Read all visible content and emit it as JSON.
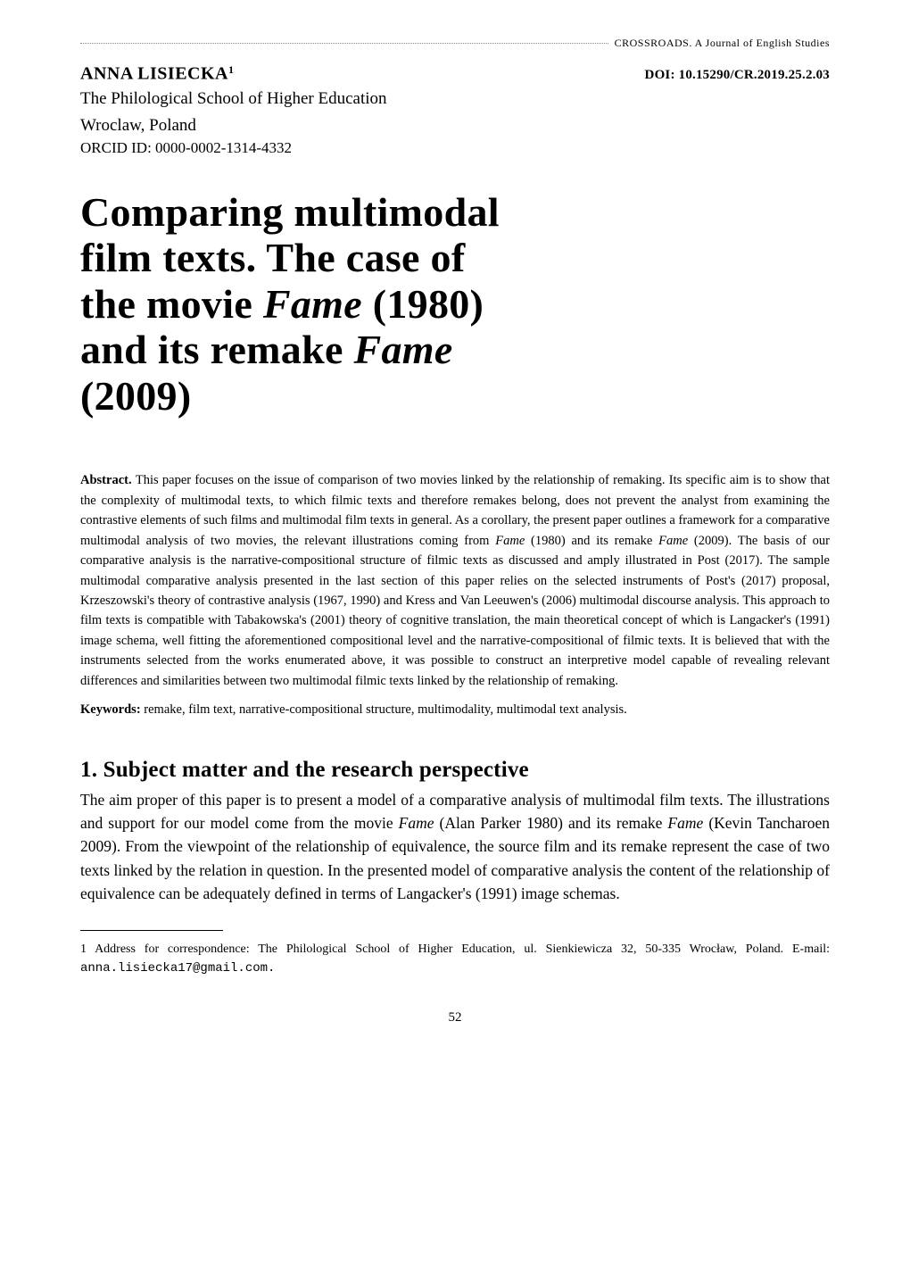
{
  "journal_header": "CROSSROADS. A Journal of English Studies",
  "author": {
    "name": "ANNA LISIECKA",
    "sup": "1",
    "affiliation_line1": "The Philological School of Higher Education",
    "affiliation_line2": "Wroclaw, Poland",
    "orcid": "ORCID ID: 0000-0002-1314-4332"
  },
  "doi": "DOI: 10.15290/CR.2019.25.2.03",
  "title": {
    "line1": "Comparing multimodal",
    "line2": "film texts. The case of",
    "line3_prefix": "the movie ",
    "line3_italic": "Fame",
    "line3_suffix": " (1980)",
    "line4_prefix": "and its remake ",
    "line4_italic": "Fame",
    "line5": "(2009)"
  },
  "abstract": {
    "label": "Abstract. ",
    "text_part1": "This paper focuses on the issue of comparison of two movies linked by the relationship of remaking. Its specific aim is to show that the complexity of multimodal texts, to which filmic texts and therefore remakes belong, does not prevent the analyst from examining the contrastive elements of such films and multimodal film texts in general. As a corollary, the present paper outlines a framework for a comparative multimodal analysis of two movies, the relevant illustrations coming from ",
    "italic1": "Fame",
    "text_part2": " (1980) and its remake ",
    "italic2": "Fame",
    "text_part3": " (2009). The basis of our comparative analysis is the narrative-compositional structure of filmic texts as discussed and amply illustrated in Post (2017). The sample multimodal comparative analysis presented in the last section of this paper relies on the selected instruments of Post's (2017) proposal, Krzeszowski's theory of contrastive analysis (1967, 1990) and Kress and Van Leeuwen's (2006) multimodal discourse analysis. This approach to film texts is compatible with Tabakowska's (2001) theory of cognitive translation, the main theoretical concept of which is Langacker's (1991) image schema, well fitting the aforementioned compositional level and the narrative-compositional of filmic texts. It is believed that with the instruments selected from the works enumerated above, it was possible to construct an interpretive model capable of revealing relevant differences and similarities between two multimodal filmic texts linked by the relationship of remaking."
  },
  "keywords": {
    "label": "Keywords: ",
    "text": "remake, film text, narrative-compositional structure, multimodality, multimodal text analysis."
  },
  "section1": {
    "heading": "1. Subject matter and the research perspective",
    "body_part1": "The aim proper of this paper is to present a model of a comparative analysis of multimodal film texts. The illustrations and support for our model come from the movie ",
    "italic1": "Fame",
    "body_part2": " (Alan Parker 1980) and its remake ",
    "italic2": "Fame",
    "body_part3": " (Kevin Tancharoen 2009). From the viewpoint of the relationship of equivalence, the source film and its remake represent the case of two texts linked by the relation in question. In the presented model of comparative analysis the content of the relationship of equivalence can be adequately defined in terms of Langacker's (1991) image schemas."
  },
  "footnote": {
    "marker": "1 ",
    "text_part1": "Address for correspondence: The Philological School of Higher Education, ul. Sienkiewicza 32, 50-335 Wrocław, Poland. E-mail: ",
    "email": "anna.lisiecka17@gmail.com."
  },
  "page_number": "52"
}
